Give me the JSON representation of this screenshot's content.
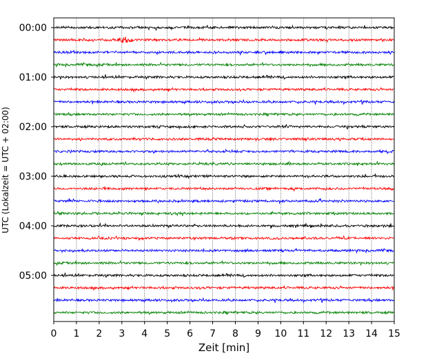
{
  "chart_data": {
    "type": "line",
    "subtype": "seismogram-helicorder",
    "title": "",
    "xlabel": "Zeit  [min]",
    "ylabel": "UTC (Lokalzeit = UTC + 02:00)",
    "xlim": [
      0,
      15
    ],
    "x_ticks": [
      "0",
      "1",
      "2",
      "3",
      "4",
      "5",
      "6",
      "7",
      "8",
      "9",
      "10",
      "11",
      "12",
      "13",
      "14",
      "15"
    ],
    "y_tick_labels": [
      "00:00",
      "01:00",
      "02:00",
      "03:00",
      "04:00",
      "05:00"
    ],
    "grid": "vertical dotted at each minute",
    "line_interval_minutes": 15,
    "colors": [
      "#000000",
      "#ff0000",
      "#0000ff",
      "#008000"
    ],
    "traces": [
      {
        "start": "00:00",
        "color": "#000000"
      },
      {
        "start": "00:15",
        "color": "#ff0000",
        "event_minute": 3.1
      },
      {
        "start": "00:30",
        "color": "#0000ff"
      },
      {
        "start": "00:45",
        "color": "#008000"
      },
      {
        "start": "01:00",
        "color": "#000000"
      },
      {
        "start": "01:15",
        "color": "#ff0000"
      },
      {
        "start": "01:30",
        "color": "#0000ff"
      },
      {
        "start": "01:45",
        "color": "#008000"
      },
      {
        "start": "02:00",
        "color": "#000000"
      },
      {
        "start": "02:15",
        "color": "#ff0000"
      },
      {
        "start": "02:30",
        "color": "#0000ff"
      },
      {
        "start": "02:45",
        "color": "#008000"
      },
      {
        "start": "03:00",
        "color": "#000000"
      },
      {
        "start": "03:15",
        "color": "#ff0000"
      },
      {
        "start": "03:30",
        "color": "#0000ff"
      },
      {
        "start": "03:45",
        "color": "#008000"
      },
      {
        "start": "04:00",
        "color": "#000000"
      },
      {
        "start": "04:15",
        "color": "#ff0000"
      },
      {
        "start": "04:30",
        "color": "#0000ff"
      },
      {
        "start": "04:45",
        "color": "#008000"
      },
      {
        "start": "05:00",
        "color": "#000000"
      },
      {
        "start": "05:15",
        "color": "#ff0000"
      },
      {
        "start": "05:30",
        "color": "#0000ff"
      },
      {
        "start": "05:45",
        "color": "#008000"
      }
    ]
  }
}
